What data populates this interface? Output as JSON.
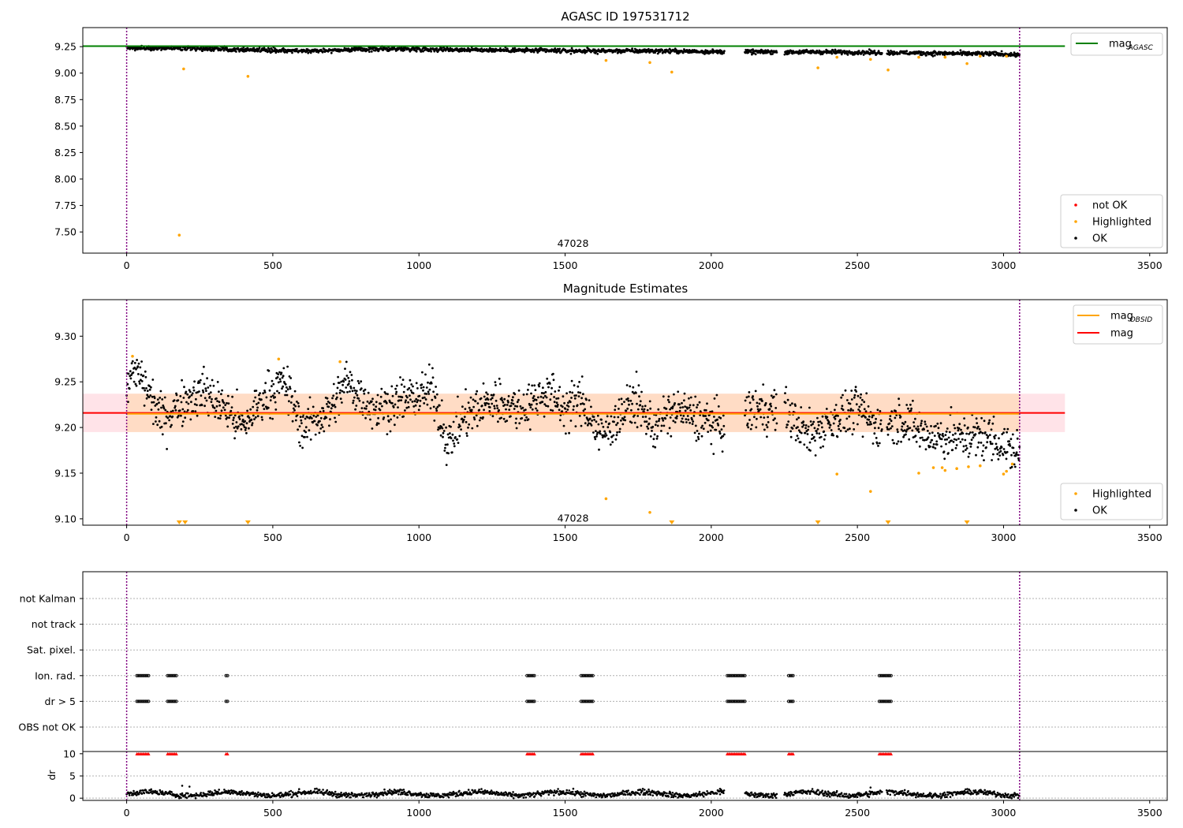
{
  "figure": {
    "title_top": "AGASC ID 197531712",
    "title_mid": "Magnitude Estimates"
  },
  "colors": {
    "ok": "#000000",
    "highlighted": "#ffa500",
    "not_ok": "#ff0000",
    "mag_agasc": "#008000",
    "mag": "#ff0000",
    "mag_obsid": "#ffa500",
    "obs_marker": "#800080",
    "band_obs": "#ffdab9",
    "band_mag": "#ffc0cb"
  },
  "chart_data": [
    {
      "type": "scatter",
      "title": "AGASC ID 197531712",
      "xlim": [
        -150,
        3560
      ],
      "ylim": [
        7.3,
        9.43
      ],
      "xticks": [
        0,
        500,
        1000,
        1500,
        2000,
        2500,
        3000,
        3500
      ],
      "yticks": [
        7.5,
        7.75,
        8.0,
        8.25,
        8.5,
        8.75,
        9.0,
        9.25
      ],
      "ytick_labels": [
        "7.50",
        "7.75",
        "8.00",
        "8.25",
        "8.50",
        "8.75",
        "9.00",
        "9.25"
      ],
      "obs_boundaries": [
        0,
        3055
      ],
      "obsid_label": {
        "text": "47028",
        "x": 1527,
        "y": 7.36
      },
      "mag_agasc": 9.255,
      "mag_agasc_xrange": [
        -150,
        3210
      ],
      "ok_trend": [
        [
          0,
          9.24
        ],
        [
          300,
          9.23
        ],
        [
          600,
          9.21
        ],
        [
          900,
          9.23
        ],
        [
          1200,
          9.22
        ],
        [
          1500,
          9.21
        ],
        [
          1800,
          9.21
        ],
        [
          2100,
          9.2
        ],
        [
          2400,
          9.2
        ],
        [
          2700,
          9.19
        ],
        [
          3000,
          9.18
        ],
        [
          3055,
          9.17
        ]
      ],
      "ok_gaps": [
        [
          2045,
          2115
        ],
        [
          2225,
          2250
        ],
        [
          2585,
          2600
        ]
      ],
      "highlighted_points": [
        [
          180,
          7.47
        ],
        [
          195,
          9.04
        ],
        [
          415,
          8.97
        ],
        [
          1640,
          9.12
        ],
        [
          1790,
          9.1
        ],
        [
          1865,
          9.01
        ],
        [
          2365,
          9.05
        ],
        [
          2430,
          9.15
        ],
        [
          2545,
          9.13
        ],
        [
          2605,
          9.03
        ],
        [
          2710,
          9.15
        ],
        [
          2800,
          9.15
        ],
        [
          2875,
          9.09
        ],
        [
          2920,
          9.16
        ],
        [
          3010,
          9.16
        ]
      ],
      "legend_upper": [
        {
          "label": "mag",
          "subscript": "AGASC"
        }
      ],
      "legend_lower": [
        {
          "label": "not OK"
        },
        {
          "label": "Highlighted"
        },
        {
          "label": "OK"
        }
      ]
    },
    {
      "type": "scatter",
      "title": "Magnitude Estimates",
      "xlim": [
        -150,
        3560
      ],
      "ylim": [
        9.093,
        9.34
      ],
      "xticks": [
        0,
        500,
        1000,
        1500,
        2000,
        2500,
        3000,
        3500
      ],
      "yticks": [
        9.1,
        9.15,
        9.2,
        9.25,
        9.3
      ],
      "ytick_labels": [
        "9.10",
        "9.15",
        "9.20",
        "9.25",
        "9.30"
      ],
      "obs_boundaries": [
        0,
        3055
      ],
      "obsid_label": {
        "text": "47028",
        "x": 1527,
        "y": 9.097
      },
      "mag": 9.216,
      "mag_xrange": [
        -150,
        3210
      ],
      "mag_band": [
        9.195,
        9.237
      ],
      "mag_obsid": 9.215,
      "mag_obsid_xrange": [
        0,
        3055
      ],
      "obs_band": [
        9.195,
        9.237
      ],
      "ok_trend": [
        [
          0,
          9.25
        ],
        [
          40,
          9.26
        ],
        [
          120,
          9.21
        ],
        [
          200,
          9.23
        ],
        [
          260,
          9.24
        ],
        [
          340,
          9.22
        ],
        [
          400,
          9.2
        ],
        [
          460,
          9.23
        ],
        [
          540,
          9.25
        ],
        [
          600,
          9.2
        ],
        [
          700,
          9.22
        ],
        [
          750,
          9.25
        ],
        [
          850,
          9.22
        ],
        [
          950,
          9.23
        ],
        [
          1050,
          9.24
        ],
        [
          1100,
          9.18
        ],
        [
          1150,
          9.21
        ],
        [
          1250,
          9.23
        ],
        [
          1350,
          9.22
        ],
        [
          1440,
          9.24
        ],
        [
          1500,
          9.22
        ],
        [
          1560,
          9.23
        ],
        [
          1620,
          9.19
        ],
        [
          1680,
          9.21
        ],
        [
          1740,
          9.23
        ],
        [
          1800,
          9.2
        ],
        [
          1880,
          9.22
        ],
        [
          1950,
          9.21
        ],
        [
          2050,
          9.2
        ],
        [
          2150,
          9.22
        ],
        [
          2250,
          9.22
        ],
        [
          2330,
          9.19
        ],
        [
          2420,
          9.21
        ],
        [
          2500,
          9.22
        ],
        [
          2580,
          9.2
        ],
        [
          2650,
          9.21
        ],
        [
          2750,
          9.19
        ],
        [
          2850,
          9.19
        ],
        [
          2950,
          9.19
        ],
        [
          3055,
          9.17
        ]
      ],
      "ok_gaps": [
        [
          2045,
          2115
        ],
        [
          2225,
          2250
        ],
        [
          2585,
          2600
        ]
      ],
      "highlighted_points": [
        [
          20,
          9.278
        ],
        [
          520,
          9.275
        ],
        [
          730,
          9.272
        ],
        [
          1640,
          9.122
        ],
        [
          1790,
          9.107
        ],
        [
          2430,
          9.149
        ],
        [
          2545,
          9.13
        ],
        [
          2710,
          9.15
        ],
        [
          2760,
          9.156
        ],
        [
          2790,
          9.156
        ],
        [
          2800,
          9.153
        ],
        [
          2840,
          9.155
        ],
        [
          2880,
          9.157
        ],
        [
          2920,
          9.158
        ],
        [
          3000,
          9.149
        ],
        [
          3010,
          9.152
        ],
        [
          3030,
          9.16
        ]
      ],
      "clipped_low": [
        180,
        200,
        415,
        1865,
        2365,
        2605,
        2875
      ],
      "legend_upper": [
        {
          "label": "mag",
          "subscript": "OBSID"
        },
        {
          "label": "mag",
          "subscript": ""
        }
      ],
      "legend_lower": [
        {
          "label": "Highlighted"
        },
        {
          "label": "OK"
        }
      ]
    },
    {
      "type": "scatter",
      "xlim": [
        -150,
        3560
      ],
      "xticks": [
        0,
        500,
        1000,
        1500,
        2000,
        2500,
        3000,
        3500
      ],
      "obs_boundaries": [
        0,
        3055
      ],
      "flag_rows": [
        "not Kalman",
        "not track",
        "Sat. pixel.",
        "Ion. rad.",
        "dr > 5",
        "OBS not OK"
      ],
      "flag_segments": [
        [
          35,
          75
        ],
        [
          140,
          170
        ],
        [
          340,
          345
        ],
        [
          1370,
          1395
        ],
        [
          1555,
          1595
        ],
        [
          2055,
          2115
        ],
        [
          2265,
          2280
        ],
        [
          2575,
          2615
        ]
      ],
      "flagged_rows": [
        "Ion. rad.",
        "dr > 5"
      ]
    },
    {
      "type": "scatter",
      "xlim": [
        -150,
        3560
      ],
      "ylim": [
        -0.5,
        10.5
      ],
      "ylabel": "dr",
      "xticks": [
        0,
        500,
        1000,
        1500,
        2000,
        2500,
        3000,
        3500
      ],
      "yticks": [
        0,
        5,
        10
      ],
      "ytick_labels": [
        "0",
        "5",
        "10"
      ],
      "obs_boundaries": [
        0,
        3055
      ],
      "dr_ok_mean": 1.0,
      "dr_outliers": [
        [
          190,
          2.8
        ],
        [
          215,
          2.6
        ],
        [
          2030,
          2.1
        ],
        [
          2545,
          2.4
        ]
      ],
      "dr_flagged_y": 10,
      "ok_gaps": [
        [
          2045,
          2115
        ],
        [
          2225,
          2250
        ],
        [
          2585,
          2600
        ]
      ]
    }
  ]
}
